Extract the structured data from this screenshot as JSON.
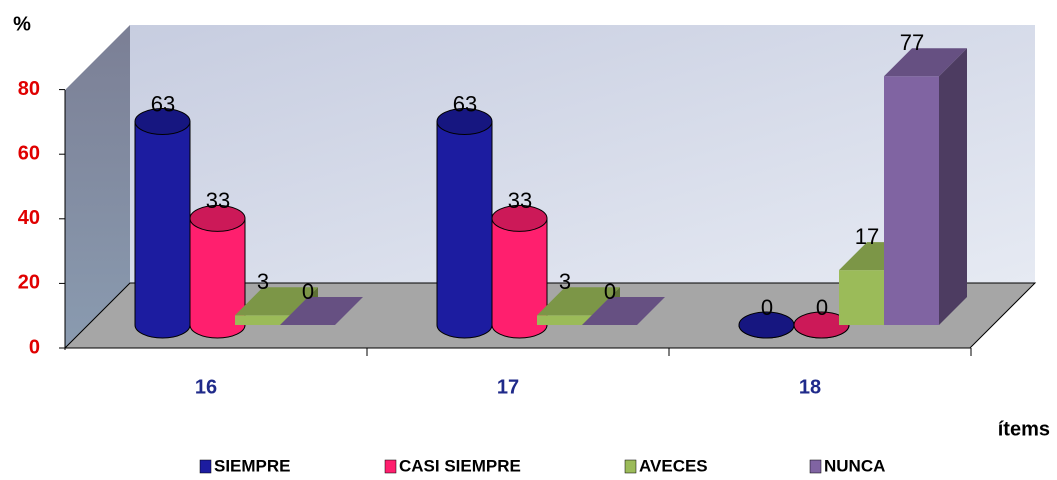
{
  "chart_data": {
    "type": "bar3d",
    "y_label": "%",
    "x_label": "ítems",
    "categories": [
      "16",
      "17",
      "18"
    ],
    "series": [
      {
        "name": "SIEMPRE",
        "color": "#1c1ca0",
        "values": [
          63,
          63,
          0
        ]
      },
      {
        "name": "CASI SIEMPRE",
        "color": "#ff1f6e",
        "values": [
          33,
          33,
          0
        ]
      },
      {
        "name": "AVECES",
        "color": "#9bbb59",
        "values": [
          3,
          3,
          17
        ]
      },
      {
        "name": "NUNCA",
        "color": "#8064a2",
        "values": [
          0,
          0,
          77
        ]
      }
    ],
    "ylim": [
      0,
      100
    ],
    "yticks": [
      0,
      20,
      40,
      60,
      80
    ]
  }
}
